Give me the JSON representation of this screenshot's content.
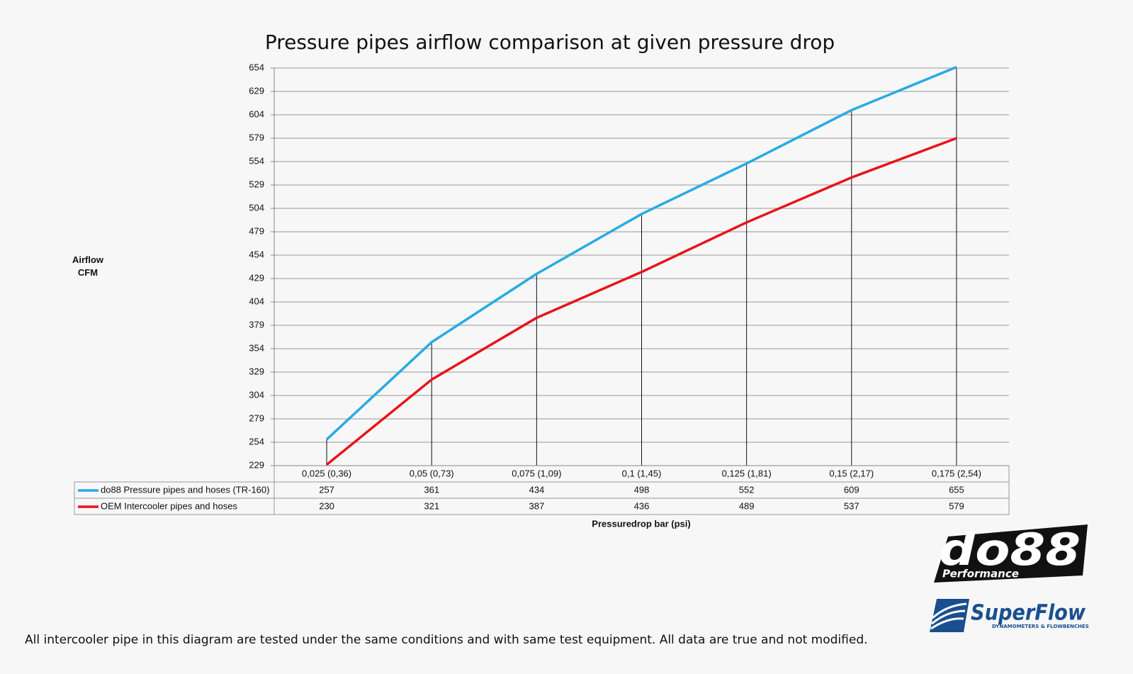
{
  "chart_data": {
    "type": "line",
    "title": "Pressure pipes airflow comparison at given pressure drop",
    "ylabel": "Airflow CFM",
    "xlabel": "Pressuredrop bar (psi)",
    "categories": [
      "0,025 (0,36)",
      "0,05 (0,73)",
      "0,075 (1,09)",
      "0,1 (1,45)",
      "0,125 (1,81)",
      "0,15 (2,17)",
      "0,175 (2,54)"
    ],
    "series": [
      {
        "name": "do88 Pressure pipes and hoses (TR-160)",
        "color": "#29abe2",
        "values": [
          257,
          361,
          434,
          498,
          552,
          609,
          655
        ]
      },
      {
        "name": "OEM Intercooler pipes and hoses",
        "color": "#e8141a",
        "values": [
          230,
          321,
          387,
          436,
          489,
          537,
          579
        ]
      }
    ],
    "ylim": [
      229,
      654
    ],
    "yticks": [
      229,
      254,
      279,
      304,
      329,
      354,
      379,
      404,
      429,
      454,
      479,
      504,
      529,
      554,
      579,
      604,
      629,
      654
    ],
    "grid": true,
    "drop_lines": true,
    "data_table": true
  },
  "footnote": "All intercooler pipe in this diagram are tested under the same conditions and with same test equipment. All data are true and not modified.",
  "logos": {
    "do88": "do88",
    "performance": "Performance",
    "superflow": "SuperFlow",
    "superflow_tagline": "DYNAMOMETERS & FLOWBENCHES"
  }
}
